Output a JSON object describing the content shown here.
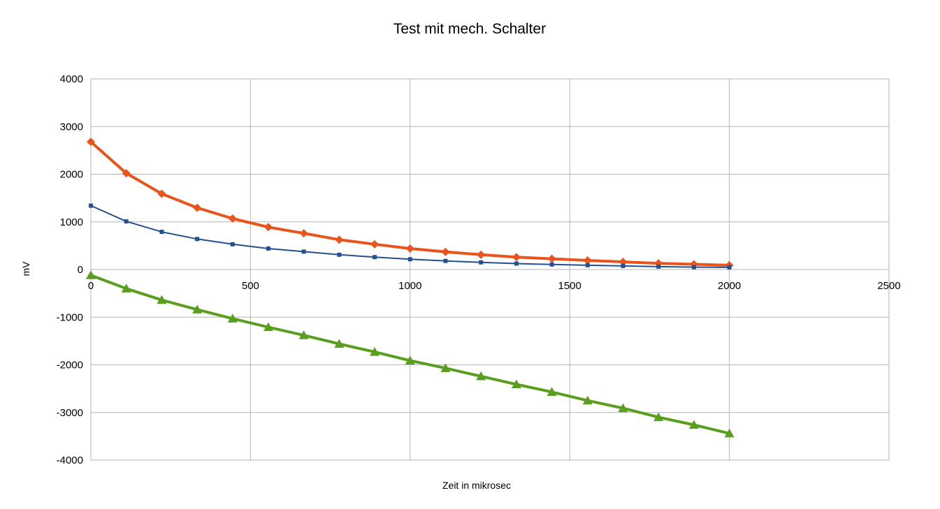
{
  "chart_data": {
    "type": "line",
    "title": "Test mit mech. Schalter",
    "xlabel": "Zeit in mikrosec",
    "ylabel": "mV",
    "xlim": [
      0,
      2500
    ],
    "ylim": [
      -4000,
      4000
    ],
    "x_ticks": [
      "0",
      "500",
      "1000",
      "1500",
      "2000",
      "2500"
    ],
    "y_ticks": [
      "4000",
      "3000",
      "2000",
      "1000",
      "0",
      "-1000",
      "-2000",
      "-3000",
      "-4000"
    ],
    "grid": true,
    "legend": "none",
    "x": [
      0,
      111,
      222,
      333,
      444,
      556,
      667,
      778,
      889,
      1000,
      1111,
      1222,
      1333,
      1444,
      1556,
      1667,
      1778,
      1889,
      2000
    ],
    "series": [
      {
        "color": "#e8541c",
        "marker": "diamond",
        "values": [
          2680,
          2020,
          1590,
          1295,
          1070,
          890,
          760,
          625,
          530,
          440,
          370,
          310,
          260,
          225,
          190,
          160,
          130,
          110,
          90
        ]
      },
      {
        "color": "#23508f",
        "marker": "square",
        "values": [
          1340,
          1010,
          790,
          640,
          530,
          440,
          375,
          310,
          260,
          215,
          180,
          150,
          125,
          105,
          90,
          75,
          60,
          50,
          45
        ]
      },
      {
        "color": "#5a9e1f",
        "marker": "triangle",
        "values": [
          -120,
          -400,
          -640,
          -840,
          -1030,
          -1210,
          -1380,
          -1560,
          -1730,
          -1910,
          -2070,
          -2240,
          -2410,
          -2570,
          -2750,
          -2910,
          -3100,
          -3260,
          -3440
        ]
      }
    ]
  }
}
